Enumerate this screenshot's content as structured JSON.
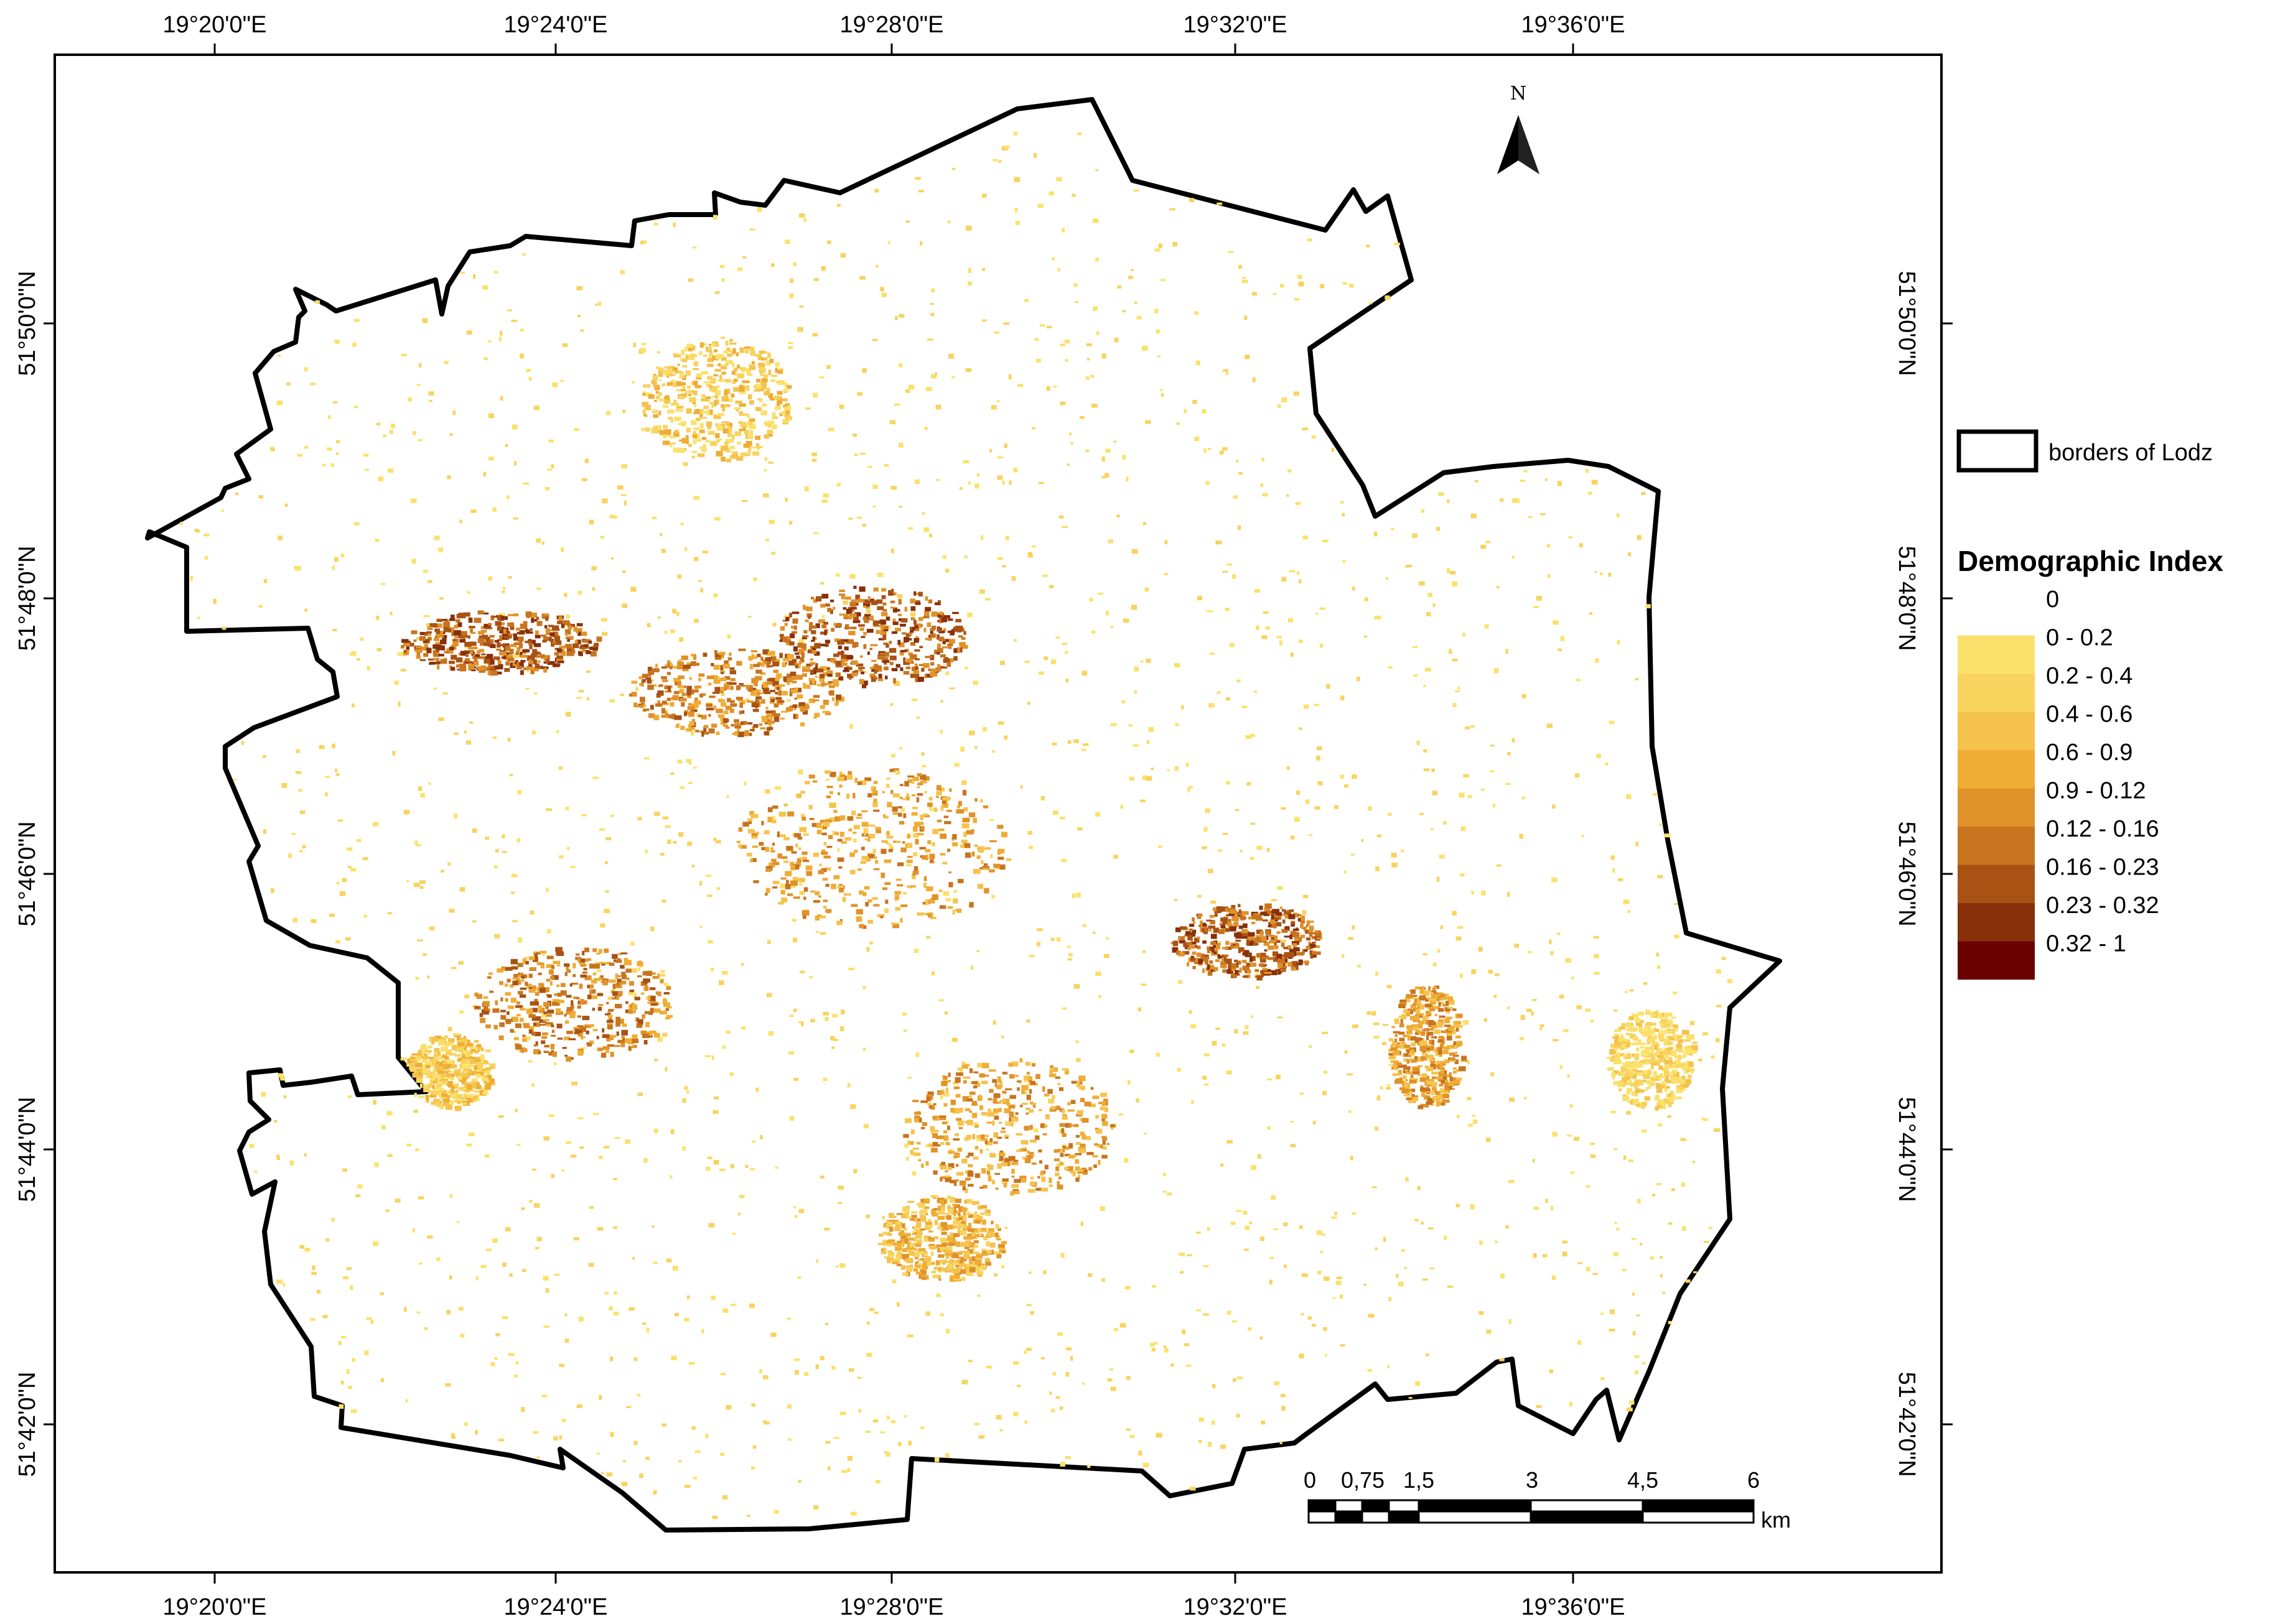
{
  "map": {
    "top_lon_ticks": [
      "19°20'0\"E",
      "19°24'0\"E",
      "19°28'0\"E",
      "19°32'0\"E",
      "19°36'0\"E"
    ],
    "bottom_lon_ticks": [
      "19°20'0\"E",
      "19°24'0\"E",
      "19°28'0\"E",
      "19°32'0\"E",
      "19°36'0\"E"
    ],
    "left_lat_ticks": [
      "51°50'0\"N",
      "51°48'0\"N",
      "51°46'0\"N",
      "51°44'0\"N",
      "51°42'0\"N"
    ],
    "right_lat_ticks": [
      "51°50'0\"N",
      "51°48'0\"N",
      "51°46'0\"N",
      "51°44'0\"N",
      "51°42'0\"N"
    ],
    "north_label": "N",
    "boundary_color": "#000000"
  },
  "legend": {
    "border_label": "borders of Lodz",
    "title": "Demographic Index",
    "classes": [
      {
        "label": "0",
        "color": "#ffffff"
      },
      {
        "label": "0 - 0.2",
        "color": "#fbe16b"
      },
      {
        "label": "0.2 - 0.4",
        "color": "#f8d35e"
      },
      {
        "label": "0.4 - 0.6",
        "color": "#f5c34c"
      },
      {
        "label": "0.6 - 0.9",
        "color": "#efad35"
      },
      {
        "label": "0.9 - 0.12",
        "color": "#e0922a"
      },
      {
        "label": "0.12 - 0.16",
        "color": "#c8741f"
      },
      {
        "label": "0.16 - 0.23",
        "color": "#a85214"
      },
      {
        "label": "0.23 - 0.32",
        "color": "#88300a"
      },
      {
        "label": "0.32 - 1",
        "color": "#6b0000"
      }
    ]
  },
  "scale_bar": {
    "labels": [
      "0",
      "0,75",
      "1,5",
      "3",
      "4,5",
      "6"
    ],
    "unit": "km"
  }
}
